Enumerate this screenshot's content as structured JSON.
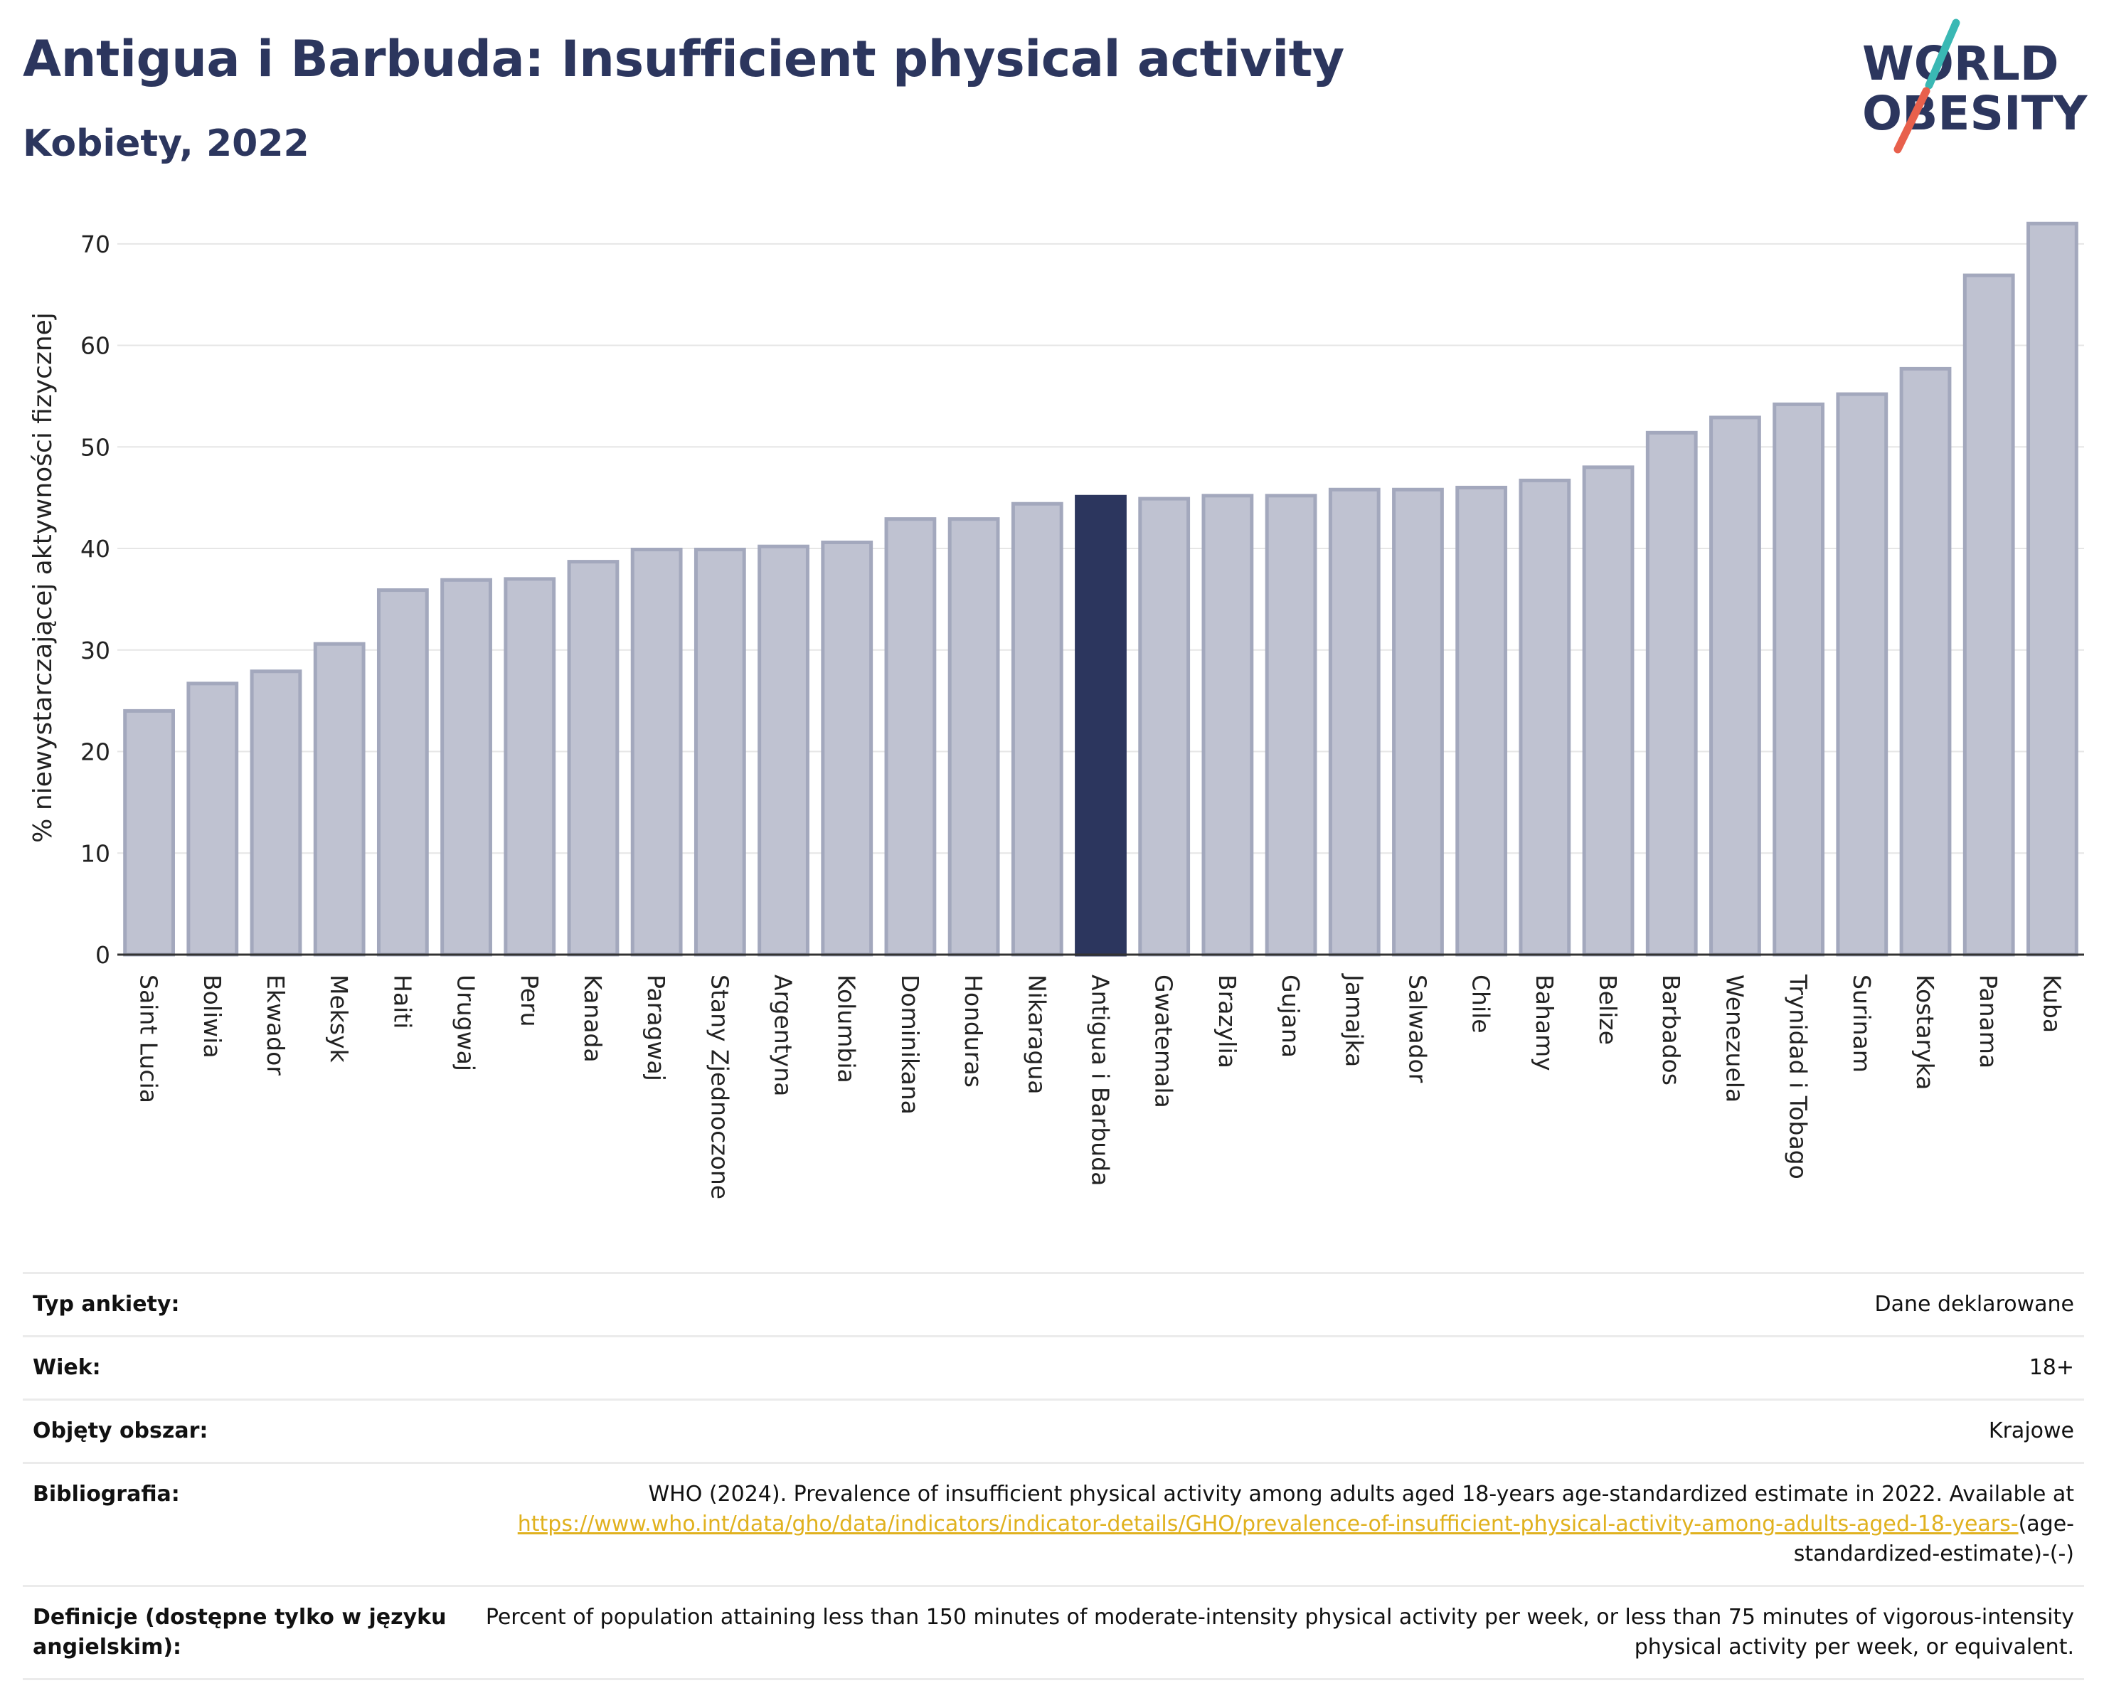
{
  "header": {
    "title": "Antigua i Barbuda: Insufficient physical activity",
    "subtitle": "Kobiety, 2022"
  },
  "logo": {
    "line1": "WORLD",
    "line2": "OBESITY",
    "slash_colors": [
      "#3ab8b4",
      "#e8604c"
    ]
  },
  "colors": {
    "bar": "#bfc2d1",
    "bar_stroke": "#a3a8bd",
    "highlight": "#2c365e",
    "title": "#2c365e",
    "link": "#e0b11e"
  },
  "chart_data": {
    "type": "bar",
    "title": "Antigua i Barbuda: Insufficient physical activity",
    "subtitle": "Kobiety, 2022",
    "ylabel": "% niewystarczającej aktywności fizycznej",
    "xlabel": "",
    "ylim": [
      0,
      73
    ],
    "yticks": [
      0,
      10,
      20,
      30,
      40,
      50,
      60,
      70
    ],
    "grid": true,
    "highlight": "Antigua i Barbuda",
    "categories": [
      "Saint Lucia",
      "Boliwia",
      "Ekwador",
      "Meksyk",
      "Haiti",
      "Urugwaj",
      "Peru",
      "Kanada",
      "Paragwaj",
      "Stany Zjednoczone",
      "Argentyna",
      "Kolumbia",
      "Dominikana",
      "Honduras",
      "Nikaragua",
      "Antigua i Barbuda",
      "Gwatemala",
      "Brazylia",
      "Gujana",
      "Jamajka",
      "Salwador",
      "Chile",
      "Bahamy",
      "Belize",
      "Barbados",
      "Wenezuela",
      "Trynidad i Tobago",
      "Surinam",
      "Kostaryka",
      "Panama",
      "Kuba"
    ],
    "values": [
      24.0,
      26.7,
      27.9,
      30.6,
      35.9,
      36.9,
      37.0,
      38.7,
      39.9,
      39.9,
      40.2,
      40.6,
      42.9,
      42.9,
      44.4,
      45.1,
      44.9,
      45.2,
      45.2,
      45.8,
      45.8,
      46.0,
      46.7,
      48.0,
      51.4,
      52.9,
      54.2,
      55.2,
      57.7,
      66.9,
      72.0
    ]
  },
  "info": {
    "survey_label": "Typ ankiety:",
    "survey_value": "Dane deklarowane",
    "age_label": "Wiek:",
    "age_value": "18+",
    "area_label": "Objęty obszar:",
    "area_value": "Krajowe",
    "biblio_label": "Bibliografia:",
    "biblio_text": "WHO (2024). Prevalence of insufficient physical activity among adults aged 18-years age-standardized estimate in 2022. Available at",
    "biblio_link": "https://www.who.int/data/gho/data/indicators/indicator-details/GHO/prevalence-of-insufficient-physical-activity-among-adults-aged-18-years-",
    "biblio_suffix": "(age-standardized-estimate)-(-)",
    "def_label": "Definicje (dostępne tylko w języku angielskim):",
    "def_value": "Percent of population attaining less than 150 minutes of moderate-intensity physical activity per week, or less than 75 minutes of vigorous-intensity physical activity per week, or equivalent."
  }
}
